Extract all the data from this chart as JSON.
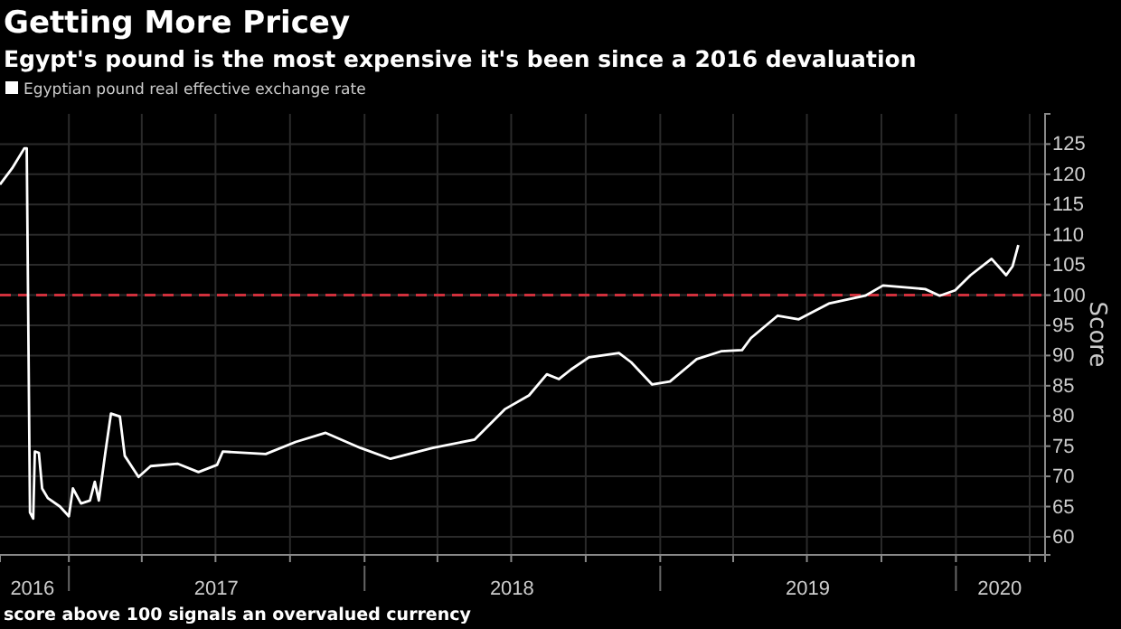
{
  "chart_data": {
    "type": "line",
    "title": "Getting More Pricey",
    "subtitle": "Egypt's pound is the most expensive it's been since a 2016 devaluation",
    "ylabel": "Score",
    "annotations": [
      "score above 100 signals an overvalued currency"
    ],
    "x": [
      "2016-10-08",
      "2016-10-23",
      "2016-11-07",
      "2016-11-10",
      "2016-11-14",
      "2016-11-18",
      "2016-11-20",
      "2016-11-25",
      "2016-11-29",
      "2016-12-06",
      "2016-12-21",
      "2017-01-01",
      "2017-01-06",
      "2017-01-16",
      "2017-01-27",
      "2017-02-02",
      "2017-02-07",
      "2017-02-15",
      "2017-02-22",
      "2017-03-05",
      "2017-03-11",
      "2017-03-28",
      "2017-04-12",
      "2017-05-15",
      "2017-06-10",
      "2017-07-03",
      "2017-07-10",
      "2017-09-01",
      "2017-10-08",
      "2017-11-14",
      "2017-12-27",
      "2018-02-02",
      "2018-03-26",
      "2018-05-17",
      "2018-06-23",
      "2018-07-23",
      "2018-08-14",
      "2018-08-29",
      "2018-09-13",
      "2018-10-05",
      "2018-11-11",
      "2018-11-26",
      "2018-12-22",
      "2019-01-13",
      "2019-02-15",
      "2019-03-17",
      "2019-04-12",
      "2019-04-23",
      "2019-05-26",
      "2019-06-21",
      "2019-07-28",
      "2019-09-11",
      "2019-10-03",
      "2019-11-24",
      "2019-12-12",
      "2019-12-31",
      "2020-01-19",
      "2020-02-14",
      "2020-03-03",
      "2020-03-11",
      "2020-03-18"
    ],
    "series": [
      {
        "name": "Egyptian pound real effective exchange rate",
        "color": "#ffffff",
        "values": [
          118.3,
          121,
          124.3,
          124.3,
          64,
          63,
          74.1,
          73.9,
          68,
          66.4,
          65,
          63.4,
          68,
          65.5,
          66,
          69.1,
          66,
          73.9,
          80.4,
          79.9,
          73.4,
          69.9,
          71.7,
          72.1,
          70.7,
          71.9,
          74.1,
          73.7,
          75.7,
          77.2,
          74.7,
          72.9,
          74.7,
          76.1,
          81.1,
          83.4,
          86.9,
          86.1,
          87.7,
          89.7,
          90.4,
          88.9,
          85.2,
          85.7,
          89.4,
          90.7,
          90.9,
          92.9,
          96.6,
          96,
          98.6,
          99.9,
          101.6,
          101,
          99.9,
          100.8,
          103.3,
          106,
          103.3,
          104.8,
          108.3
        ]
      }
    ],
    "xlim": [
      "2016-10-08",
      "2020-04-20"
    ],
    "xticks": [
      {
        "value": "2016-11-17",
        "label": "2016"
      },
      {
        "value": "2017-07-02",
        "label": "2017"
      },
      {
        "value": "2018-07-02",
        "label": "2018"
      },
      {
        "value": "2019-07-02",
        "label": "2019"
      },
      {
        "value": "2020-02-24",
        "label": "2020"
      },
      {
        "value": "2017-01-01",
        "label": null
      },
      {
        "value": "2017-04-01",
        "label": null
      },
      {
        "value": "2017-07-01",
        "label": null
      },
      {
        "value": "2017-10-01",
        "label": null
      },
      {
        "value": "2018-01-01",
        "label": null
      },
      {
        "value": "2018-04-01",
        "label": null
      },
      {
        "value": "2018-07-01",
        "label": null
      },
      {
        "value": "2018-10-01",
        "label": null
      },
      {
        "value": "2019-01-01",
        "label": null
      },
      {
        "value": "2019-04-01",
        "label": null
      },
      {
        "value": "2019-07-01",
        "label": null
      },
      {
        "value": "2019-10-01",
        "label": null
      },
      {
        "value": "2020-01-01",
        "label": null
      },
      {
        "value": "2020-04-01",
        "label": null
      }
    ],
    "ylim": [
      57,
      130
    ],
    "yticks": [
      60,
      65,
      70,
      75,
      80,
      85,
      90,
      95,
      100,
      105,
      110,
      115,
      120,
      125
    ],
    "ref_lines": [
      {
        "axis": "y",
        "value": 100,
        "label": null,
        "color": "#d0303c",
        "line_style": "dashed"
      }
    ],
    "grid": true,
    "legend": "top left",
    "marker": "none",
    "line_style": "solid"
  }
}
